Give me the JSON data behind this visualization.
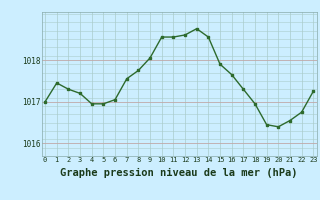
{
  "x": [
    0,
    1,
    2,
    3,
    4,
    5,
    6,
    7,
    8,
    9,
    10,
    11,
    12,
    13,
    14,
    15,
    16,
    17,
    18,
    19,
    20,
    21,
    22,
    23
  ],
  "y": [
    1017.0,
    1017.45,
    1017.3,
    1017.2,
    1016.95,
    1016.95,
    1017.05,
    1017.55,
    1017.75,
    1018.05,
    1018.55,
    1018.55,
    1018.6,
    1018.75,
    1018.55,
    1017.9,
    1017.65,
    1017.3,
    1016.95,
    1016.45,
    1016.4,
    1016.55,
    1016.75,
    1017.25
  ],
  "line_color": "#2d6a2d",
  "marker": "s",
  "marker_size": 2.0,
  "bg_color": "#cceeff",
  "grid_color_v": "#aacccc",
  "grid_color_h_minor": "#aacccc",
  "grid_color_h_major": "#c0a8a8",
  "title": "Graphe pression niveau de la mer (hPa)",
  "title_fontsize": 7.5,
  "xlabel_ticks": [
    "0",
    "1",
    "2",
    "3",
    "4",
    "5",
    "6",
    "7",
    "8",
    "9",
    "10",
    "11",
    "12",
    "13",
    "14",
    "15",
    "16",
    "17",
    "18",
    "19",
    "20",
    "21",
    "22",
    "23"
  ],
  "yticks": [
    1016,
    1017,
    1018
  ],
  "ylim": [
    1015.7,
    1019.15
  ],
  "xlim": [
    -0.3,
    23.3
  ],
  "line_width": 1.0
}
